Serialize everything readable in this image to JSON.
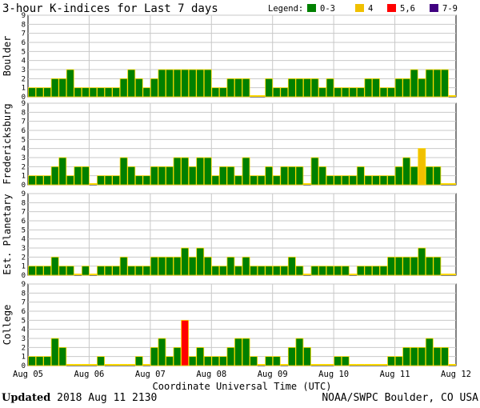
{
  "chart_data": {
    "type": "bar",
    "title": "3-hour K-indices for Last 7 days",
    "legend": {
      "label": "Legend:",
      "placement": "top-right",
      "items": [
        {
          "label": "0-3",
          "color": "#008000"
        },
        {
          "label": "4",
          "color": "#f0c000"
        },
        {
          "label": "5,6",
          "color": "#ff0000"
        },
        {
          "label": "7-9",
          "color": "#400080"
        }
      ]
    },
    "xlabel": "Coordinate Universal Time (UTC)",
    "x_tick_labels": [
      "Aug 05",
      "Aug 06",
      "Aug 07",
      "Aug 08",
      "Aug 09",
      "Aug 10",
      "Aug 11",
      "Aug 12"
    ],
    "yticks": [
      0,
      1,
      2,
      3,
      4,
      5,
      6,
      7,
      8,
      9
    ],
    "ylim": [
      0,
      9
    ],
    "panels": [
      {
        "name": "Boulder",
        "values": [
          1,
          1,
          1,
          2,
          2,
          3,
          1,
          1,
          1,
          1,
          1,
          1,
          2,
          3,
          2,
          1,
          2,
          3,
          3,
          3,
          3,
          3,
          3,
          3,
          1,
          1,
          2,
          2,
          2,
          0,
          0,
          2,
          1,
          1,
          2,
          2,
          2,
          2,
          1,
          2,
          1,
          1,
          1,
          1,
          2,
          2,
          1,
          1,
          2,
          2,
          3,
          2,
          3,
          3,
          3,
          0
        ]
      },
      {
        "name": "Fredericksburg",
        "values": [
          1,
          1,
          1,
          2,
          3,
          1,
          2,
          2,
          0,
          1,
          1,
          1,
          3,
          2,
          1,
          1,
          2,
          2,
          2,
          3,
          3,
          2,
          3,
          3,
          1,
          2,
          2,
          1,
          3,
          1,
          1,
          2,
          1,
          2,
          2,
          2,
          0,
          3,
          2,
          1,
          1,
          1,
          1,
          2,
          1,
          1,
          1,
          1,
          2,
          3,
          2,
          4,
          2,
          2,
          0,
          0
        ]
      },
      {
        "name": "Est. Planetary",
        "values": [
          1,
          1,
          1,
          2,
          1,
          1,
          0,
          1,
          0,
          1,
          1,
          1,
          2,
          1,
          1,
          1,
          2,
          2,
          2,
          2,
          3,
          2,
          3,
          2,
          1,
          1,
          2,
          1,
          2,
          1,
          1,
          1,
          1,
          1,
          2,
          1,
          0,
          1,
          1,
          1,
          1,
          1,
          0,
          1,
          1,
          1,
          1,
          2,
          2,
          2,
          2,
          3,
          2,
          2,
          0,
          0
        ]
      },
      {
        "name": "College",
        "values": [
          1,
          1,
          1,
          3,
          2,
          0,
          0,
          0,
          0,
          1,
          0,
          0,
          0,
          0,
          1,
          0,
          2,
          3,
          1,
          2,
          5,
          1,
          2,
          1,
          1,
          1,
          2,
          3,
          3,
          1,
          0,
          1,
          1,
          0,
          2,
          3,
          2,
          0,
          0,
          0,
          1,
          1,
          0,
          0,
          0,
          0,
          0,
          1,
          1,
          2,
          2,
          2,
          3,
          2,
          2,
          0
        ]
      }
    ]
  },
  "footer": {
    "updated_label": "Updated",
    "updated_value": "2018 Aug 11 2130",
    "credit": "NOAA/SWPC Boulder, CO USA"
  }
}
